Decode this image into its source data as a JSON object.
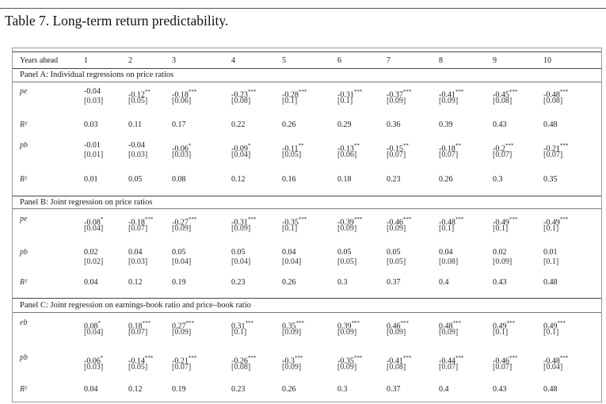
{
  "caption": "Table 7. Long-term return predictability.",
  "header": {
    "label": "Years ahead",
    "cols": [
      "1",
      "2",
      "3",
      "4",
      "5",
      "6",
      "7",
      "8",
      "9",
      "10"
    ]
  },
  "panels": [
    {
      "title": "Panel A: Individual regressions on price ratios",
      "rows": [
        {
          "label": "pe",
          "type": "coef",
          "coef": [
            "-0.04",
            "-0.12**",
            "-0.18***",
            "-0.23***",
            "-0.28***",
            "-0.31***",
            "-0.37***",
            "-0.41***",
            "-0.45***",
            "-0.48***"
          ],
          "se": [
            "[0.03]",
            "[0.05]",
            "[0.06]",
            "[0.08]",
            "[0.1]",
            "[0.1]",
            "[0.09]",
            "[0.09]",
            "[0.08]",
            "[0.08]"
          ]
        },
        {
          "label": "R²",
          "type": "r2",
          "vals": [
            "0.03",
            "0.11",
            "0.17",
            "0.22",
            "0.26",
            "0.29",
            "0.36",
            "0.39",
            "0.43",
            "0.48"
          ]
        },
        {
          "label": "pb",
          "type": "coef",
          "coef": [
            "-0.01",
            "-0.04",
            "-0.06*",
            "-0.09*",
            "-0.11**",
            "-0.13**",
            "-0.15**",
            "-0.18**",
            "-0.2***",
            "-0.21***"
          ],
          "se": [
            "[0.01]",
            "[0.03]",
            "[0.03]",
            "[0.04]",
            "[0.05]",
            "[0.06]",
            "[0.07]",
            "[0.07]",
            "[0.07]",
            "[0.07]"
          ]
        },
        {
          "label": "R²",
          "type": "r2",
          "vals": [
            "0.01",
            "0.05",
            "0.08",
            "0.12",
            "0.16",
            "0.18",
            "0.23",
            "0.26",
            "0.3",
            "0.35"
          ]
        }
      ]
    },
    {
      "title": "Panel B: Joint regression on price ratios",
      "rows": [
        {
          "label": "pe",
          "type": "coef",
          "coef": [
            "-0.08*",
            "-0.18***",
            "-0.27***",
            "-0.31***",
            "-0.35***",
            "-0.39***",
            "-0.46***",
            "-0.48***",
            "-0.49***",
            "-0.49***"
          ],
          "se": [
            "[0.04]",
            "[0.07]",
            "[0.09]",
            "[0.09]",
            "[0.1]",
            "[0.09]",
            "[0.09]",
            "[0.1]",
            "[0.1]",
            "[0.1]"
          ]
        },
        {
          "label": "pb",
          "type": "coef",
          "coef": [
            "0.02",
            "0.04",
            "0.05",
            "0.05",
            "0.04",
            "0.05",
            "0.05",
            "0.04",
            "0.02",
            "0.01"
          ],
          "se": [
            "[0.02]",
            "[0.03]",
            "[0.04]",
            "[0.04]",
            "[0.04]",
            "[0.05]",
            "[0.05]",
            "[0.08]",
            "[0.09]",
            "[0.1]"
          ]
        },
        {
          "label": "R²",
          "type": "r2",
          "vals": [
            "0.04",
            "0.12",
            "0.19",
            "0.23",
            "0.26",
            "0.3",
            "0.37",
            "0.4",
            "0.43",
            "0.48"
          ]
        }
      ]
    },
    {
      "title": "Panel C: Joint regression on earnings-book ratio and price–book ratio",
      "rows": [
        {
          "label": "eb",
          "type": "coef",
          "coef": [
            "0.08*",
            "0.18***",
            "0.27***",
            "0.31***",
            "0.35***",
            "0.39***",
            "0.46***",
            "0.48***",
            "0.49***",
            "0.49***"
          ],
          "se": [
            "[0.04]",
            "[0.07]",
            "[0.09]",
            "[0.1]",
            "[0.09]",
            "[0.09]",
            "[0.09]",
            "[0.09]",
            "[0.1]",
            "[0.1]"
          ]
        },
        {
          "label": "pb",
          "type": "coef",
          "coef": [
            "-0.06*",
            "-0.14***",
            "-0.21***",
            "-0.26***",
            "-0.3***",
            "-0.35***",
            "-0.41***",
            "-0.44***",
            "-0.46***",
            "-0.48***"
          ],
          "se": [
            "[0.03]",
            "[0.05]",
            "[0.07]",
            "[0.08]",
            "[0.09]",
            "[0.09]",
            "[0.08]",
            "[0.07]",
            "[0.07]",
            "[0.04]"
          ]
        },
        {
          "label": "R²",
          "type": "r2",
          "vals": [
            "0.04",
            "0.12",
            "0.19",
            "0.23",
            "0.26",
            "0.3",
            "0.37",
            "0.4",
            "0.43",
            "0.48"
          ]
        }
      ]
    }
  ]
}
